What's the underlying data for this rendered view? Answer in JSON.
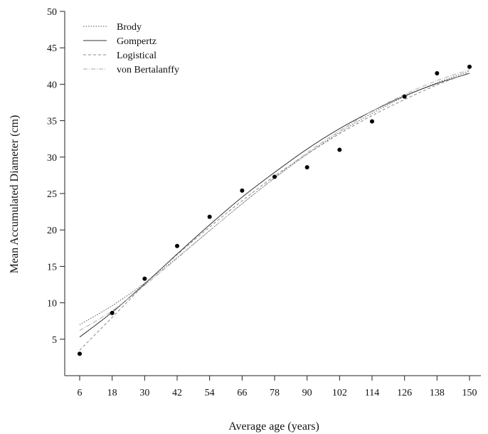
{
  "chart_data": {
    "type": "line",
    "xlabel": "Average age (years)",
    "ylabel": "Mean Accumulated Diameter (cm)",
    "x_ticks": [
      6,
      18,
      30,
      42,
      54,
      66,
      78,
      90,
      102,
      114,
      126,
      138,
      150
    ],
    "y_ticks": [
      5,
      10,
      15,
      20,
      25,
      30,
      35,
      40,
      45,
      50
    ],
    "xlim": [
      6,
      150
    ],
    "ylim": [
      0,
      50
    ],
    "grid": false,
    "legend_position": "top-left",
    "observed": {
      "x": [
        6,
        18,
        30,
        42,
        54,
        66,
        78,
        90,
        102,
        114,
        126,
        138,
        150
      ],
      "y": [
        3.0,
        8.6,
        13.3,
        17.8,
        21.8,
        25.4,
        27.3,
        28.6,
        31.0,
        34.9,
        38.3,
        41.5,
        42.4
      ]
    },
    "series": [
      {
        "name": "Brody",
        "style": "dotted",
        "color": "#555555",
        "x": [
          6,
          18,
          30,
          42,
          54,
          66,
          78,
          90,
          102,
          114,
          126,
          138,
          150
        ],
        "y": [
          7.0,
          9.6,
          12.7,
          16.2,
          19.9,
          23.6,
          27.1,
          30.4,
          33.4,
          36.0,
          38.3,
          40.2,
          41.8
        ]
      },
      {
        "name": "Gompertz",
        "style": "solid",
        "color": "#333333",
        "x": [
          6,
          18,
          30,
          42,
          54,
          66,
          78,
          90,
          102,
          114,
          126,
          138,
          150
        ],
        "y": [
          5.3,
          8.7,
          12.6,
          16.7,
          20.7,
          24.5,
          27.9,
          31.1,
          33.9,
          36.3,
          38.4,
          40.1,
          41.5
        ]
      },
      {
        "name": "Logistical",
        "style": "dashed",
        "color": "#888888",
        "x": [
          6,
          18,
          30,
          42,
          54,
          66,
          78,
          90,
          102,
          114,
          126,
          138,
          150
        ],
        "y": [
          3.5,
          8.0,
          12.5,
          16.6,
          20.4,
          24.0,
          27.4,
          30.4,
          33.2,
          35.7,
          37.9,
          39.9,
          41.6
        ]
      },
      {
        "name": "von Bertalanffy",
        "style": "dash-dot",
        "color": "#aaaaaa",
        "x": [
          6,
          18,
          30,
          42,
          54,
          66,
          78,
          90,
          102,
          114,
          126,
          138,
          150
        ],
        "y": [
          6.2,
          8.9,
          12.4,
          16.1,
          19.9,
          23.6,
          27.2,
          30.6,
          33.6,
          36.3,
          38.6,
          40.5,
          42.0
        ]
      }
    ]
  }
}
